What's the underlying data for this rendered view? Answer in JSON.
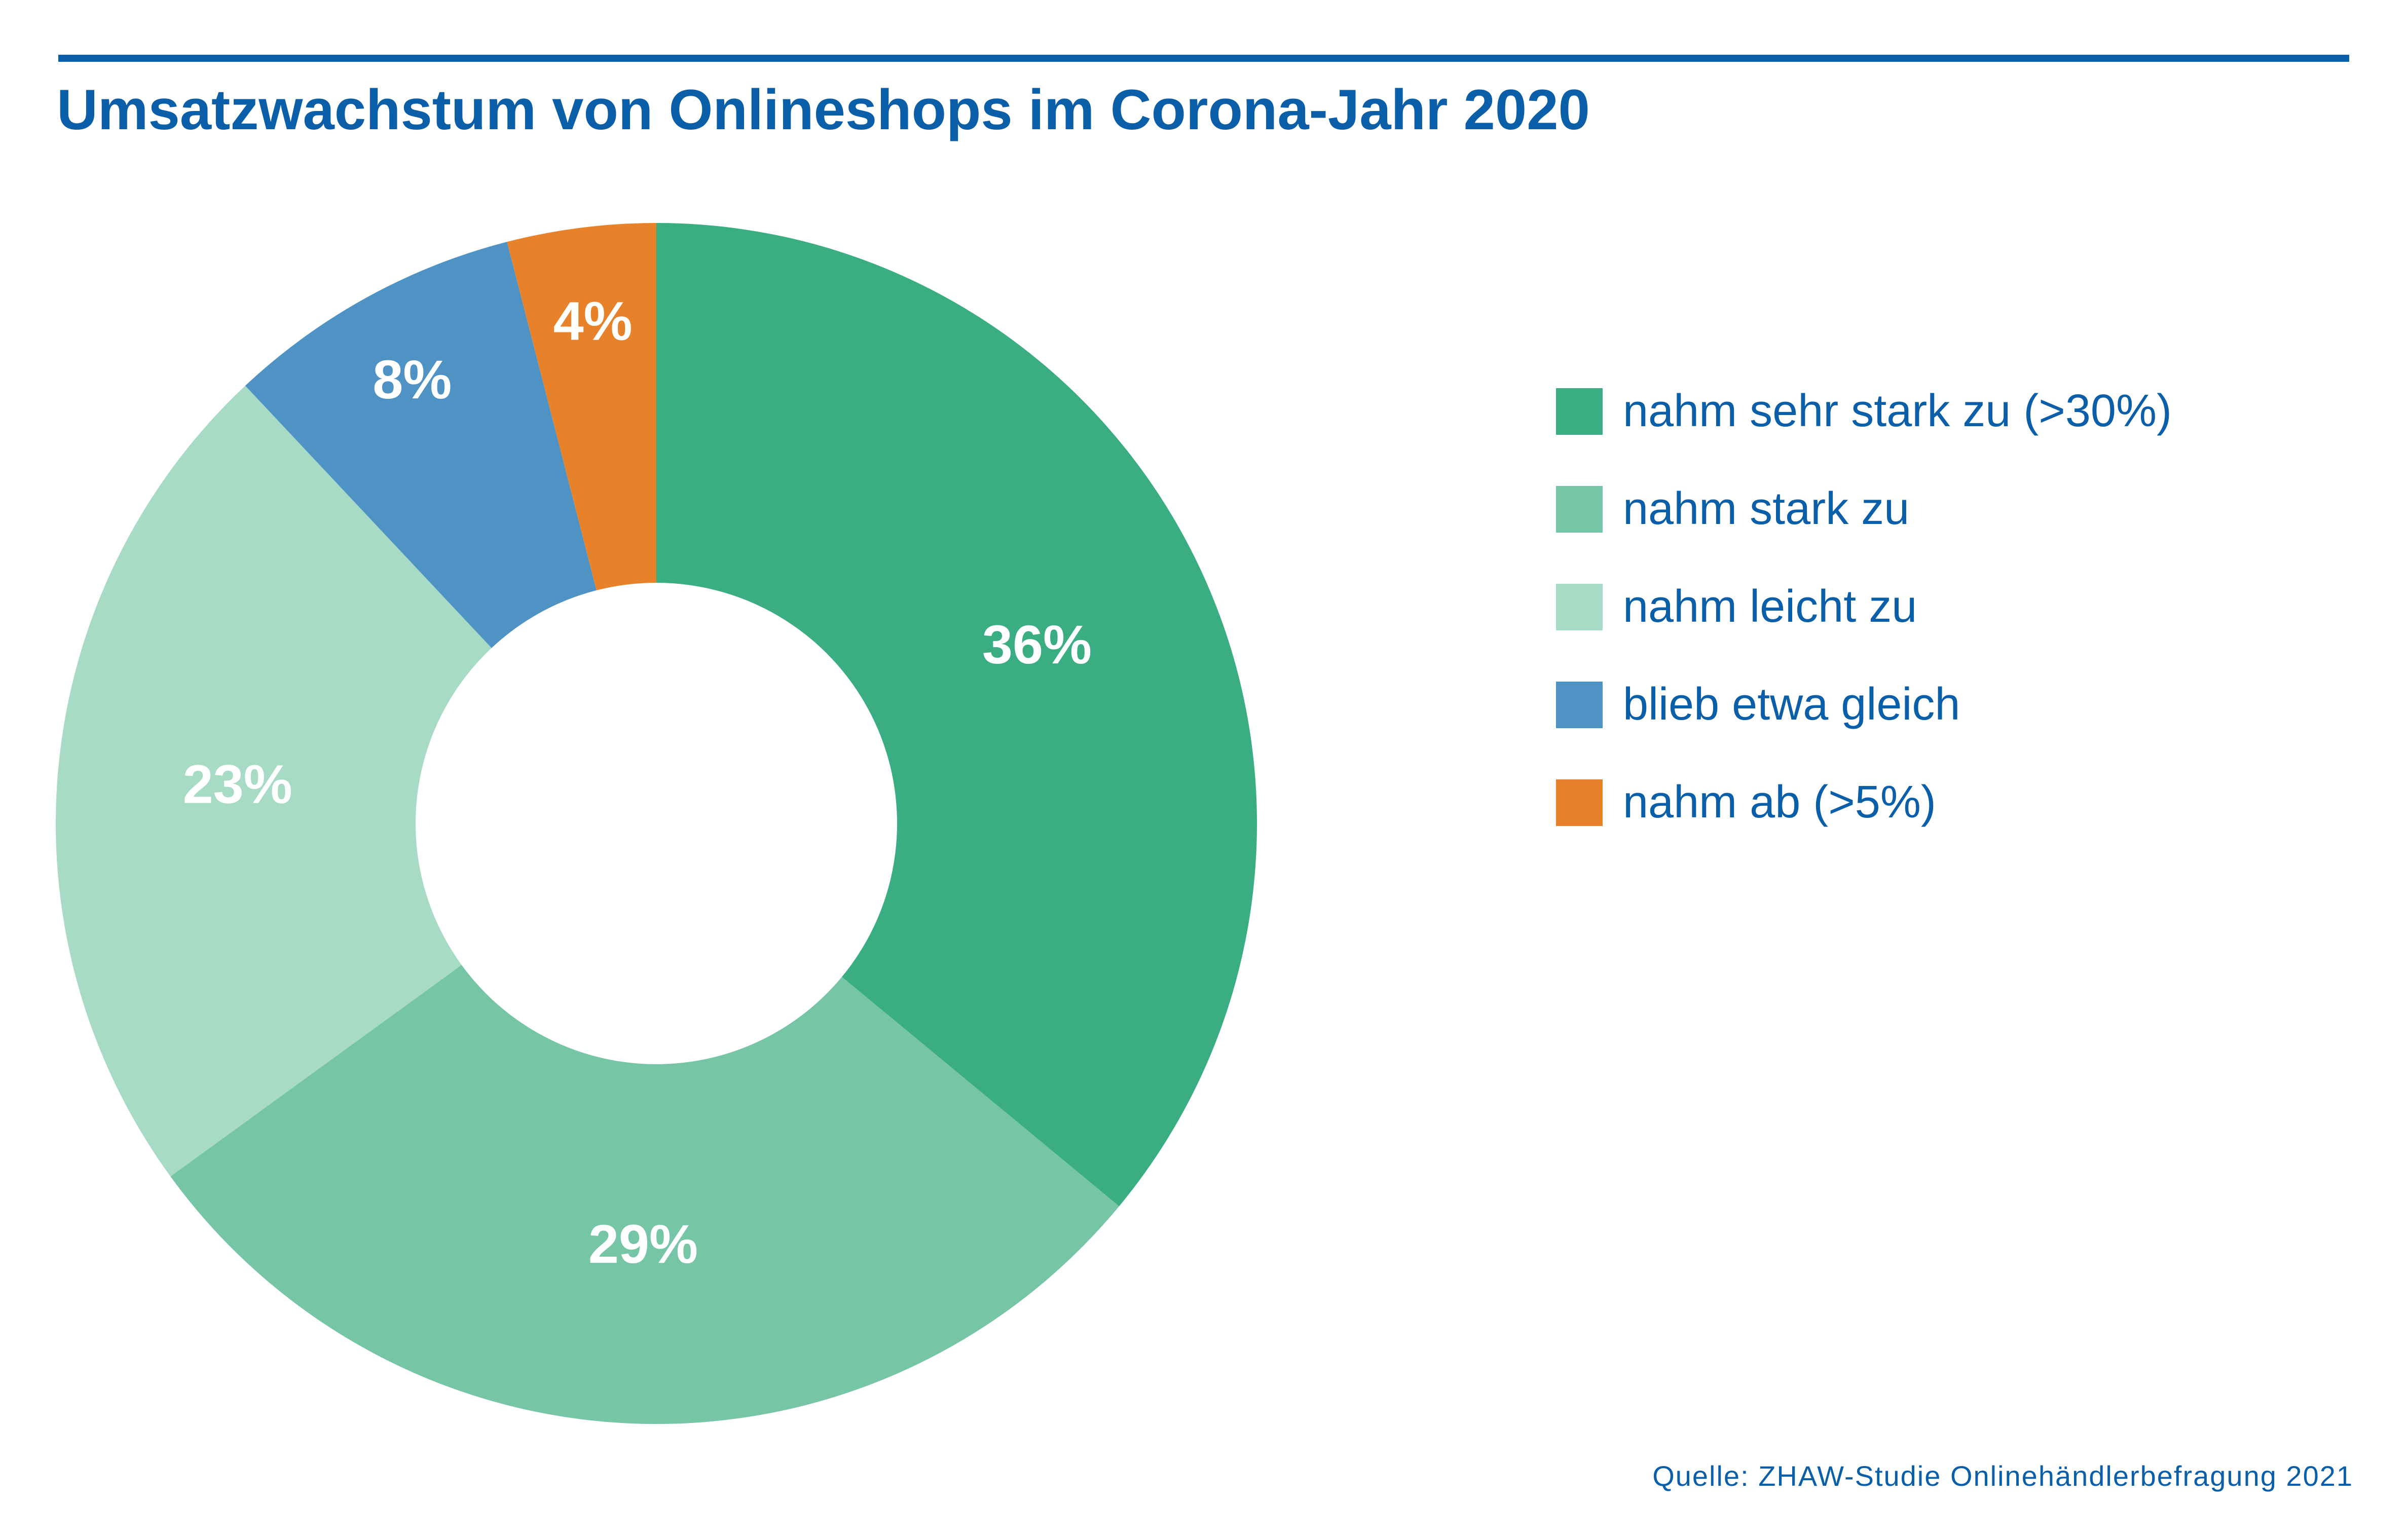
{
  "title": "Umsatzwachstum von Onlineshops im Corona-Jahr 2020",
  "source": "Quelle: ZHAW-Studie Onlinehändlerbefragung 2021",
  "colors": {
    "accent": "#0a5fa8",
    "label_text": "#ffffff"
  },
  "chart_data": {
    "type": "pie",
    "donut": true,
    "title": "Umsatzwachstum von Onlineshops im Corona-Jahr 2020",
    "legend_position": "right",
    "slices": [
      {
        "label": "nahm sehr stark zu (>30%)",
        "value": 36,
        "value_label": "36%",
        "color": "#3aad82"
      },
      {
        "label": "nahm stark zu",
        "value": 29,
        "value_label": "29%",
        "color": "#76c5a7"
      },
      {
        "label": "nahm leicht zu",
        "value": 23,
        "value_label": "23%",
        "color": "#a7dbc6"
      },
      {
        "label": "blieb etwa gleich",
        "value": 8,
        "value_label": "8%",
        "color": "#4f93c4"
      },
      {
        "label": "nahm ab (>5%)",
        "value": 4,
        "value_label": "4%",
        "color": "#e8822a"
      }
    ]
  }
}
